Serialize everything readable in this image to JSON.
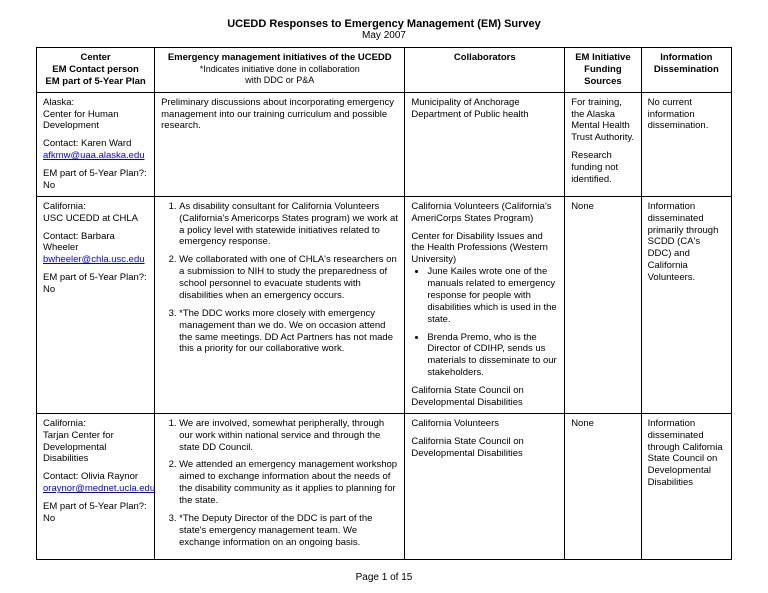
{
  "title": "UCEDD Responses to Emergency Management (EM) Survey",
  "subtitle": "May 2007",
  "headers": {
    "c1a": "Center",
    "c1b": "EM Contact person",
    "c1c": "EM part of 5-Year Plan",
    "c2a": "Emergency management initiatives of the UCEDD",
    "c2b": "*Indicates initiative done in collaboration",
    "c2c": "with DDC or P&A",
    "c3": "Collaborators",
    "c4a": "EM Initiative",
    "c4b": "Funding",
    "c4c": "Sources",
    "c5a": "Information",
    "c5b": "Dissemination"
  },
  "rows": [
    {
      "center_state": "Alaska:",
      "center_name": "Center for Human Development",
      "contact_label": "Contact: Karen Ward",
      "contact_email": "afkmw@uaa.alaska.edu",
      "plan_label": "EM part of 5-Year Plan?:",
      "plan_val": "No",
      "initiatives_text": "Preliminary discussions about incorporating emergency management into our training curriculum and possible research.",
      "collab_text": "Municipality of Anchorage Department of Public health",
      "funding_p1": "For training, the Alaska Mental Health Trust Authority.",
      "funding_p2": "Research funding not identified.",
      "dissem": "No current information dissemination."
    },
    {
      "center_state": "California:",
      "center_name": "USC UCEDD at CHLA",
      "contact_label": "Contact: Barbara Wheeler",
      "contact_email": "bwheeler@chla.usc.edu",
      "plan_label": "EM part of 5-Year Plan?:",
      "plan_val": "No",
      "initiatives": [
        "As disability consultant for California Volunteers (California's Americorps States program) we work at a policy level with statewide initiatives related to emergency response.",
        "We collaborated with one of CHLA's researchers on a submission to NIH to study the preparedness of school personnel to evacuate students with disabilities when an emergency occurs.",
        "*The DDC works more closely with emergency management than we do.  We on occasion attend the same meetings.  DD Act Partners has not made this a priority for our collaborative work."
      ],
      "collab_intro": "California Volunteers (California's AmeriCorps States Program)",
      "collab_p2": "Center for Disability Issues and the Health Professions (Western University)",
      "collab_bullets": [
        "June Kailes wrote one of the manuals related to emergency response for people with disabilities which is used in the state.",
        "Brenda Premo, who is the Director of CDIHP, sends us materials to disseminate to our stakeholders."
      ],
      "collab_tail": "California State Council on Developmental Disabilities",
      "funding": "None",
      "dissem": "Information disseminated primarily through SCDD (CA's DDC) and California Volunteers."
    },
    {
      "center_state": "California:",
      "center_name": "Tarjan Center for Developmental Disabilities",
      "contact_label": "Contact: Olivia Raynor",
      "contact_email": "oraynor@mednet.ucla.edu",
      "plan_label": "EM part of 5-Year Plan?:",
      "plan_val": "No",
      "initiatives": [
        "We are involved, somewhat peripherally, through our work within national service and through the state DD Council.",
        "We attended an emergency management workshop aimed to exchange information about the needs of the disability community as it applies to planning for the state.",
        "*The Deputy Director of the DDC is part of the state's emergency management team. We exchange information on an ongoing basis."
      ],
      "collab_p1": "California Volunteers",
      "collab_p2": "California State Council on Developmental Disabilities",
      "funding": "None",
      "dissem": "Information disseminated through California State Council on Developmental Disabilities"
    }
  ],
  "footer": "Page 1 of 15"
}
